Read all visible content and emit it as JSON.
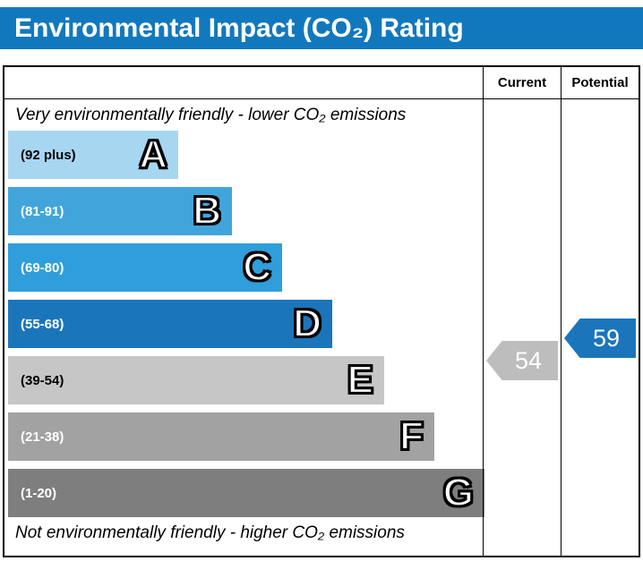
{
  "title": "Environmental Impact (CO₂) Rating",
  "header": {
    "spacer": "",
    "current": "Current",
    "potential": "Potential"
  },
  "notes": {
    "top": "Very environmentally friendly - lower CO₂ emissions",
    "bottom": "Not environmentally friendly - higher CO₂ emissions"
  },
  "bands": [
    {
      "letter": "A",
      "range": "(92 plus)",
      "color": "#a7d6f1",
      "text_color": "#000000"
    },
    {
      "letter": "B",
      "range": "(81-91)",
      "color": "#41a5dc",
      "text_color": "#ffffff"
    },
    {
      "letter": "C",
      "range": "(69-80)",
      "color": "#2f9edb",
      "text_color": "#ffffff"
    },
    {
      "letter": "D",
      "range": "(55-68)",
      "color": "#1b75bb",
      "text_color": "#ffffff"
    },
    {
      "letter": "E",
      "range": "(39-54)",
      "color": "#c6c6c6",
      "text_color": "#000000"
    },
    {
      "letter": "F",
      "range": "(21-38)",
      "color": "#a2a2a2",
      "text_color": "#ffffff"
    },
    {
      "letter": "G",
      "range": "(1-20)",
      "color": "#7e7e7e",
      "text_color": "#ffffff"
    }
  ],
  "current": {
    "label": "Current",
    "value": "54",
    "color": "#bdbdbd"
  },
  "potential": {
    "label": "Potential",
    "value": "59",
    "color": "#1b75bb"
  },
  "colors": {
    "title_bar": "#1278be",
    "border": "#000000"
  },
  "chart_data": {
    "type": "bar",
    "title": "Environmental Impact (CO₂) Rating",
    "categories": [
      "A",
      "B",
      "C",
      "D",
      "E",
      "F",
      "G"
    ],
    "band_ranges": [
      "92 plus",
      "81-91",
      "69-80",
      "55-68",
      "39-54",
      "21-38",
      "1-20"
    ],
    "values": [
      190,
      250,
      306,
      362,
      420,
      476,
      532
    ],
    "series": [
      {
        "name": "Current",
        "values": [
          54
        ]
      },
      {
        "name": "Potential",
        "values": [
          59
        ]
      }
    ],
    "current_rating": 54,
    "current_band": "E",
    "potential_rating": 59,
    "potential_band": "D",
    "xlabel": "",
    "ylabel": "",
    "legend_position": "top-right-columns",
    "grid": false,
    "annotations": [
      "Very environmentally friendly - lower CO₂ emissions",
      "Not environmentally friendly - higher CO₂ emissions"
    ]
  }
}
